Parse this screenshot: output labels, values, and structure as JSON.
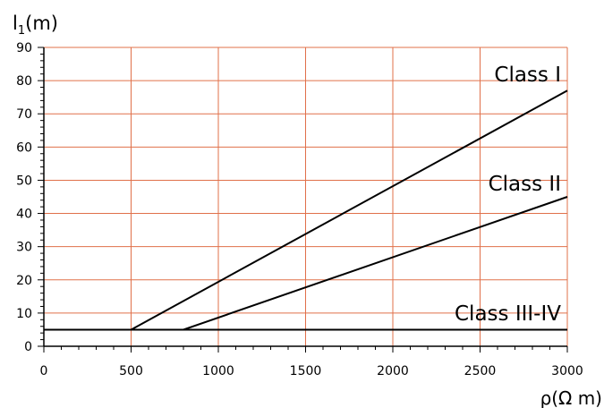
{
  "chart_data": {
    "type": "line",
    "title": "",
    "ylabel": "l₁(m)",
    "xlabel": "ρ(Ω m)",
    "xlim": [
      0,
      3000
    ],
    "ylim": [
      0,
      90
    ],
    "x_ticks": [
      "0",
      "500",
      "1000",
      "1500",
      "2000",
      "2500",
      "3000"
    ],
    "y_ticks": [
      "0",
      "10",
      "20",
      "30",
      "40",
      "50",
      "60",
      "70",
      "80",
      "90"
    ],
    "grid": true,
    "series": [
      {
        "name": "Class I",
        "points": [
          [
            0,
            5
          ],
          [
            500,
            5
          ],
          [
            3000,
            77
          ]
        ]
      },
      {
        "name": "Class II",
        "points": [
          [
            0,
            5
          ],
          [
            800,
            5
          ],
          [
            3000,
            45
          ]
        ]
      },
      {
        "name": "Class III-IV",
        "points": [
          [
            0,
            5
          ],
          [
            3000,
            5
          ]
        ]
      }
    ]
  },
  "colors": {
    "grid": "#e0704a",
    "axis": "#000000",
    "line": "#000000",
    "background": "#ffffff"
  }
}
